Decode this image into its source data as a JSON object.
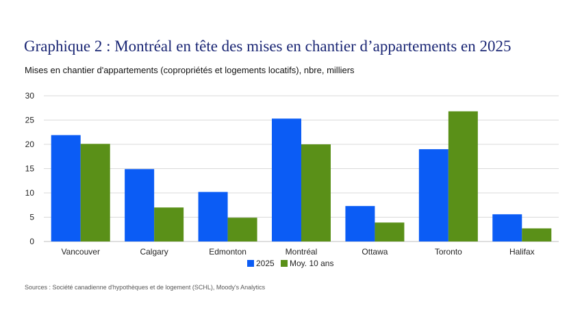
{
  "header": {
    "title": "Graphique 2 : Montréal en tête des mises en chantier d’appartements en 2025",
    "subtitle": "Mises en chantier d'appartements (copropriétés et logements locatifs), nbre, milliers"
  },
  "footer": {
    "source": "Sources : Société canadienne d'hypothèques et de logement (SCHL), Moody's Analytics"
  },
  "chart_data": {
    "type": "bar",
    "categories": [
      "Vancouver",
      "Calgary",
      "Edmonton",
      "Montréal",
      "Ottawa",
      "Toronto",
      "Halifax"
    ],
    "series": [
      {
        "name": "2025",
        "color": "#0b5cf5",
        "values": [
          21.9,
          14.9,
          10.2,
          25.3,
          7.3,
          19.0,
          5.6
        ]
      },
      {
        "name": "Moy. 10 ans",
        "color": "#5a9018",
        "values": [
          20.1,
          7.0,
          4.9,
          20.0,
          3.9,
          26.8,
          2.7
        ]
      }
    ],
    "ylim": [
      0,
      30
    ],
    "yticks": [
      "0",
      "5",
      "10",
      "15",
      "20",
      "25",
      "30"
    ],
    "grid": true,
    "legend_position": "bottom"
  }
}
